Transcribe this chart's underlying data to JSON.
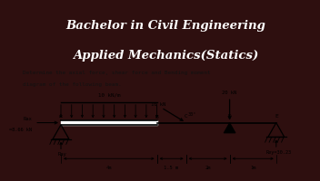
{
  "title_line1": "Bachelor in Civil Engineering",
  "title_line2": "Applied Mechanics(Statics)",
  "title_bg": "#2e0f0f",
  "title_color": "#ffffff",
  "body_bg": "#c8c5bc",
  "problem_text_line1": "Determine the axial force, shear force and Bending moment",
  "problem_text_line2": "diagram of the following beam.",
  "udl_label": "10 kN/m",
  "load1_label": "10 kN",
  "load2_label": "20 kN",
  "angle_label": "30°",
  "rax_label": "Rax",
  "rax_value": "=8.66 kN",
  "ray_label": "Ray",
  "rey_label": "Rey=30.23",
  "dim1": "4m",
  "dim2": "1.5 m",
  "dim3": "2m",
  "dim4": "1m",
  "title_fontsize": 9.5,
  "title_split": 0.37
}
